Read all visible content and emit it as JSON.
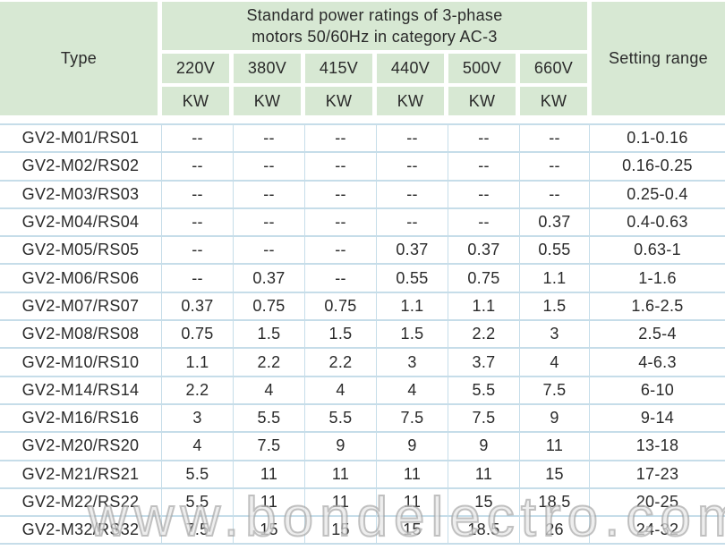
{
  "table": {
    "header": {
      "type_label": "Type",
      "group_title": "Standard power ratings of 3-phase\nmotors 50/60Hz in category AC-3",
      "voltage_columns": [
        "220V",
        "380V",
        "415V",
        "440V",
        "500V",
        "660V"
      ],
      "unit_label": "KW",
      "setting_range_label": "Setting range"
    },
    "rows": [
      {
        "type": "GV2-M01/RS01",
        "kw": [
          "--",
          "--",
          "--",
          "--",
          "--",
          "--"
        ],
        "setting_range": "0.1-0.16"
      },
      {
        "type": "GV2-M02/RS02",
        "kw": [
          "--",
          "--",
          "--",
          "--",
          "--",
          "--"
        ],
        "setting_range": "0.16-0.25"
      },
      {
        "type": "GV2-M03/RS03",
        "kw": [
          "--",
          "--",
          "--",
          "--",
          "--",
          "--"
        ],
        "setting_range": "0.25-0.4"
      },
      {
        "type": "GV2-M04/RS04",
        "kw": [
          "--",
          "--",
          "--",
          "--",
          "--",
          "0.37"
        ],
        "setting_range": "0.4-0.63"
      },
      {
        "type": "GV2-M05/RS05",
        "kw": [
          "--",
          "--",
          "--",
          "0.37",
          "0.37",
          "0.55"
        ],
        "setting_range": "0.63-1"
      },
      {
        "type": "GV2-M06/RS06",
        "kw": [
          "--",
          "0.37",
          "--",
          "0.55",
          "0.75",
          "1.1"
        ],
        "setting_range": "1-1.6"
      },
      {
        "type": "GV2-M07/RS07",
        "kw": [
          "0.37",
          "0.75",
          "0.75",
          "1.1",
          "1.1",
          "1.5"
        ],
        "setting_range": "1.6-2.5"
      },
      {
        "type": "GV2-M08/RS08",
        "kw": [
          "0.75",
          "1.5",
          "1.5",
          "1.5",
          "2.2",
          "3"
        ],
        "setting_range": "2.5-4"
      },
      {
        "type": "GV2-M10/RS10",
        "kw": [
          "1.1",
          "2.2",
          "2.2",
          "3",
          "3.7",
          "4"
        ],
        "setting_range": "4-6.3"
      },
      {
        "type": "GV2-M14/RS14",
        "kw": [
          "2.2",
          "4",
          "4",
          "4",
          "5.5",
          "7.5"
        ],
        "setting_range": "6-10"
      },
      {
        "type": "GV2-M16/RS16",
        "kw": [
          "3",
          "5.5",
          "5.5",
          "7.5",
          "7.5",
          "9"
        ],
        "setting_range": "9-14"
      },
      {
        "type": "GV2-M20/RS20",
        "kw": [
          "4",
          "7.5",
          "9",
          "9",
          "9",
          "11"
        ],
        "setting_range": "13-18"
      },
      {
        "type": "GV2-M21/RS21",
        "kw": [
          "5.5",
          "11",
          "11",
          "11",
          "11",
          "15"
        ],
        "setting_range": "17-23"
      },
      {
        "type": "GV2-M22/RS22",
        "kw": [
          "5.5",
          "11",
          "11",
          "11",
          "15",
          "18.5"
        ],
        "setting_range": "20-25"
      },
      {
        "type": "GV2-M32/RS32",
        "kw": [
          "7.5",
          "15",
          "15",
          "15",
          "18.5",
          "26"
        ],
        "setting_range": "24-32"
      }
    ]
  },
  "watermark": {
    "text": "www.bondelectro.com"
  },
  "colors": {
    "header_bg": "#d7e8d3",
    "grid_line": "#c6dde9",
    "text": "#2a2a2a",
    "page_bg": "#ffffff"
  }
}
